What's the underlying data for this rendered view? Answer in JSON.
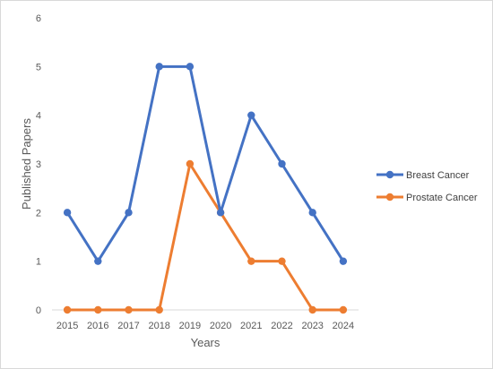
{
  "chart_data": {
    "type": "line",
    "title": "",
    "xlabel": "Years",
    "ylabel": "Published Papers",
    "x": [
      "2015",
      "2016",
      "2017",
      "2018",
      "2019",
      "2020",
      "2021",
      "2022",
      "2023",
      "2024"
    ],
    "ylim": [
      0,
      6
    ],
    "yticks": [
      "0",
      "1",
      "2",
      "3",
      "4",
      "5",
      "6"
    ],
    "grid": false,
    "legend_position": "right",
    "series": [
      {
        "name": "Breast Cancer",
        "color": "#4472c4",
        "values": [
          2,
          1,
          2,
          5,
          5,
          2,
          4,
          3,
          2,
          1
        ]
      },
      {
        "name": "Prostate Cancer",
        "color": "#ed7d31",
        "values": [
          0,
          0,
          0,
          0,
          3,
          2,
          1,
          1,
          0,
          0
        ]
      }
    ]
  }
}
